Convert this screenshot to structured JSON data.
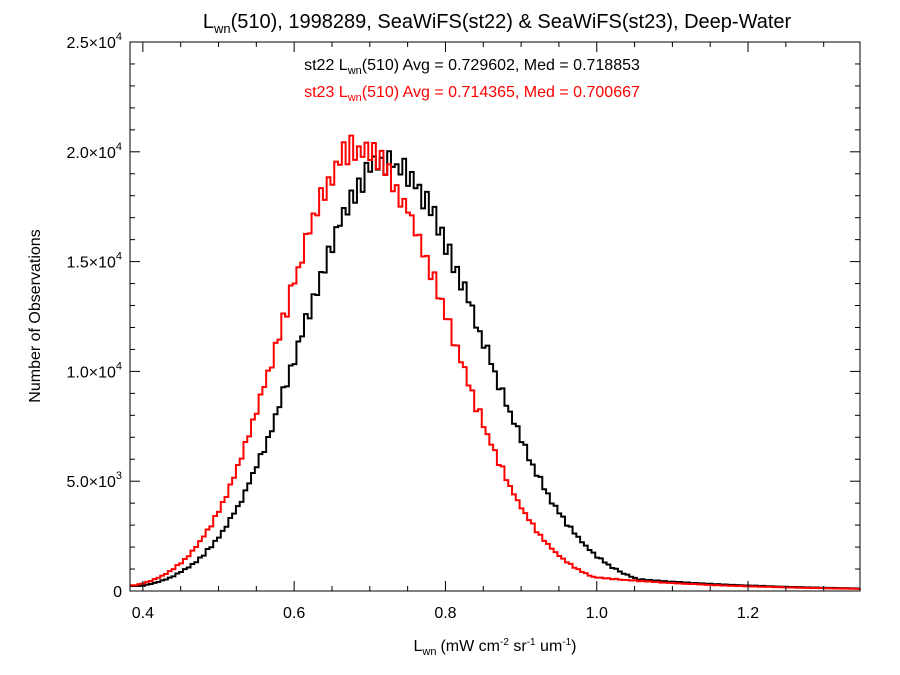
{
  "chart_data": {
    "type": "histogram-step",
    "title_main": "L",
    "title_sub": "wn",
    "title_rest": "(510), 1998289, SeaWiFS(st22) & SeaWiFS(st23), Deep-Water",
    "xlabel_main": "L",
    "xlabel_sub": "wn",
    "xlabel_units": "(mW cm",
    "xlabel_sup1": "-2",
    "xlabel_mid1": " sr",
    "xlabel_sup2": "-1",
    "xlabel_mid2": " um",
    "xlabel_sup3": "-1",
    "xlabel_end": ")",
    "ylabel": "Number of Observations",
    "xlim": [
      0.383,
      1.348
    ],
    "ylim": [
      0,
      25000
    ],
    "x_ticks": [
      {
        "value": 0.4,
        "label": "0.4"
      },
      {
        "value": 0.6,
        "label": "0.6"
      },
      {
        "value": 0.8,
        "label": "0.8"
      },
      {
        "value": 1.0,
        "label": "1.0"
      },
      {
        "value": 1.2,
        "label": "1.2"
      }
    ],
    "y_ticks": [
      {
        "value": 0,
        "mant": "0",
        "exp": ""
      },
      {
        "value": 5000,
        "mant": "5.0×10",
        "exp": "3"
      },
      {
        "value": 10000,
        "mant": "1.0×10",
        "exp": "4"
      },
      {
        "value": 15000,
        "mant": "1.5×10",
        "exp": "4"
      },
      {
        "value": 20000,
        "mant": "2.0×10",
        "exp": "4"
      },
      {
        "value": 25000,
        "mant": "2.5×10",
        "exp": "4"
      }
    ],
    "annotations": [
      {
        "pre": "st22 L",
        "sub": "wn",
        "post": "(510) Avg = 0.729602, Med = 0.718853",
        "color": "#000000"
      },
      {
        "pre": "st23 L",
        "sub": "wn",
        "post": "(510) Avg = 0.714365, Med = 0.700667",
        "color": "#ff0000"
      }
    ],
    "series": [
      {
        "name": "st22",
        "color": "#000000",
        "peak_x": 0.72,
        "peak_y": 19500,
        "sigma_left": 0.108,
        "sigma_right": 0.125,
        "tail_x": 1.348,
        "tail_y": 150
      },
      {
        "name": "st23",
        "color": "#ff0000",
        "peak_x": 0.685,
        "peak_y": 20200,
        "sigma_left": 0.1,
        "sigma_right": 0.118,
        "tail_x": 1.348,
        "tail_y": 120
      }
    ],
    "bin_width": 0.005,
    "grid": false,
    "legend": "top-center text"
  }
}
